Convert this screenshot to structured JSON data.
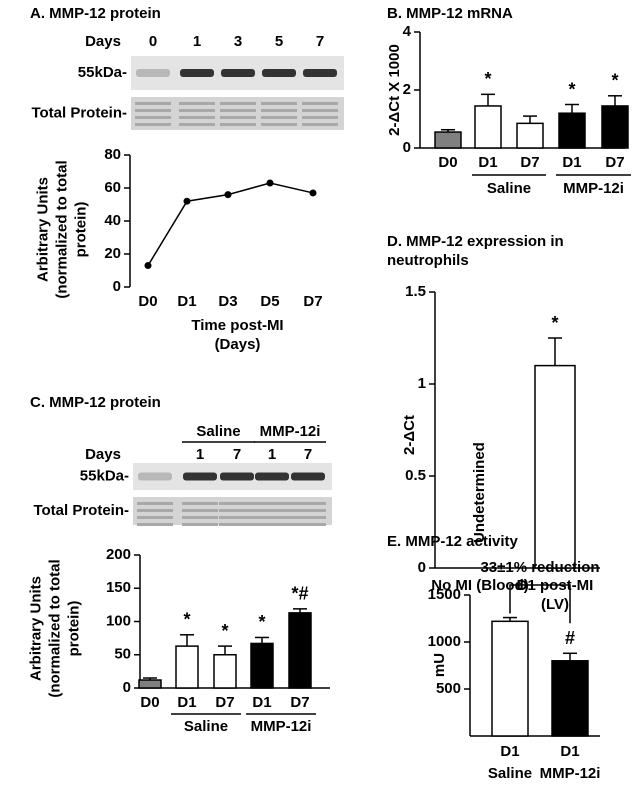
{
  "chart_data": [
    {
      "type": "line",
      "title": "A. MMP-12 protein",
      "blot": {
        "header": "Days",
        "lanes": [
          "0",
          "1",
          "3",
          "5",
          "7"
        ],
        "band_label": "55kDa-",
        "total_label": "Total Protein-"
      },
      "categories": [
        "D0",
        "D1",
        "D3",
        "D5",
        "D7"
      ],
      "values": [
        13,
        52,
        56,
        63,
        57
      ],
      "color": "#000000",
      "ylim": [
        0,
        80
      ],
      "yticks": [
        0,
        20,
        40,
        60,
        80
      ],
      "y_label": "Arbitrary Units (normalized to total protein)",
      "x_label": "Time post-MI (Days)"
    },
    {
      "type": "bar",
      "title": "B. MMP-12 mRNA",
      "y_label": "2-ΔCt X 1000",
      "categories": [
        "D0",
        "D1",
        "D7",
        "D1",
        "D7"
      ],
      "values": [
        0.55,
        1.45,
        0.85,
        1.2,
        1.45
      ],
      "errors": [
        0.08,
        0.4,
        0.25,
        0.3,
        0.35
      ],
      "colors": [
        "#808080",
        "#ffffff",
        "#ffffff",
        "#000000",
        "#000000"
      ],
      "groups": [
        null,
        "Saline",
        "Saline",
        "MMP-12i",
        "MMP-12i"
      ],
      "annotations": [
        null,
        "*",
        null,
        "*",
        "*"
      ],
      "ylim": [
        0,
        4
      ],
      "yticks": [
        0,
        2,
        4
      ]
    },
    {
      "type": "bar",
      "title": "D. MMP-12 expression in neutrophils",
      "y_label": "2-ΔCt",
      "categories": [
        "No MI (Blood)",
        "D1 post-MI (LV)"
      ],
      "values": [
        0,
        1.1
      ],
      "errors": [
        0,
        0.15
      ],
      "colors": [
        "#ffffff",
        "#ffffff"
      ],
      "annotations": [
        "Undetermined",
        "*"
      ],
      "ylim": [
        0,
        1.5
      ],
      "yticks": [
        0,
        0.5,
        1,
        1.5
      ]
    },
    {
      "type": "bar",
      "title": "C. MMP-12 protein",
      "blot": {
        "groups": [
          null,
          "Saline",
          "Saline",
          "MMP-12i",
          "MMP-12i"
        ],
        "header": "Days",
        "lanes": [
          null,
          "1",
          "7",
          "1",
          "7"
        ],
        "band_label": "55kDa-",
        "total_label": "Total Protein-"
      },
      "y_label": "Arbitrary Units (normalized to total protein)",
      "categories": [
        "D0",
        "D1",
        "D7",
        "D1",
        "D7"
      ],
      "values": [
        12,
        63,
        50,
        67,
        113
      ],
      "errors": [
        3,
        17,
        13,
        9,
        6
      ],
      "colors": [
        "#808080",
        "#ffffff",
        "#ffffff",
        "#000000",
        "#000000"
      ],
      "groups": [
        null,
        "Saline",
        "Saline",
        "MMP-12i",
        "MMP-12i"
      ],
      "annotations": [
        null,
        "*",
        "*",
        "*",
        "*#"
      ],
      "ylim": [
        0,
        200
      ],
      "yticks": [
        0,
        50,
        100,
        150,
        200
      ]
    },
    {
      "type": "bar",
      "title": "E. MMP-12 activity",
      "bracket_label": "33±1% reduction",
      "y_label": "mU",
      "categories": [
        "D1",
        "D1"
      ],
      "values": [
        1220,
        800
      ],
      "errors": [
        40,
        80
      ],
      "colors": [
        "#ffffff",
        "#000000"
      ],
      "groups": [
        "Saline",
        "MMP-12i"
      ],
      "annotations": [
        null,
        "#"
      ],
      "ylim": [
        0,
        1500
      ],
      "yticks": [
        500,
        1000,
        1500
      ]
    }
  ]
}
